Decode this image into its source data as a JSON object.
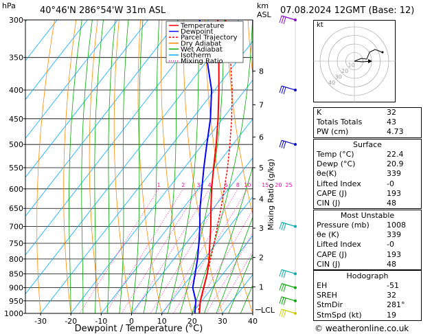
{
  "header": {
    "hpa_label": "hPa",
    "location": "40°46'N  286°54'W  31m  ASL",
    "km_label": "km",
    "asl_label": "ASL",
    "datetime": "07.08.2024  12GMT  (Base: 12)",
    "kt_label": "kt",
    "lcl_label": "LCL",
    "mixing_axis_label": "Mixing Ratio (g/kg)",
    "xlabel": "Dewpoint / Temperature (°C)",
    "copyright": "© weatheronline.co.uk"
  },
  "legend": [
    {
      "label": "Temperature",
      "color": "#ff0000"
    },
    {
      "label": "Dewpoint",
      "color": "#0000ff"
    },
    {
      "label": "Parcel Trajectory",
      "color": "#ff0000"
    },
    {
      "label": "Dry Adiabat",
      "color": "#ff8800"
    },
    {
      "label": "Wet Adiabat",
      "color": "#00aa00"
    },
    {
      "label": "Isotherm",
      "color": "#00aaff"
    },
    {
      "label": "Mixing Ratio",
      "color": "#ff00aa"
    }
  ],
  "chart_data": {
    "type": "line",
    "pressure_levels": [
      300,
      350,
      400,
      450,
      500,
      550,
      600,
      650,
      700,
      750,
      800,
      850,
      900,
      950,
      1000
    ],
    "temperature_ticks": [
      -30,
      -20,
      -10,
      0,
      10,
      20,
      30,
      40
    ],
    "xlim": [
      -35,
      40
    ],
    "ylim": [
      1000,
      300
    ],
    "km_ticks": [
      {
        "km": "1",
        "p": 897
      },
      {
        "km": "2",
        "p": 795
      },
      {
        "km": "3",
        "p": 705
      },
      {
        "km": "4",
        "p": 625
      },
      {
        "km": "5",
        "p": 550
      },
      {
        "km": "6",
        "p": 485
      },
      {
        "km": "7",
        "p": 425
      },
      {
        "km": "8",
        "p": 370
      }
    ],
    "mixing_ratio_labels": [
      "1",
      "2",
      "3",
      "4",
      "6",
      "8",
      "10",
      "15",
      "20",
      "25"
    ],
    "mixing_ratio_values": [
      1,
      2,
      3,
      4,
      6,
      8,
      10,
      15,
      20,
      25
    ],
    "lcl_pressure": 985,
    "series": [
      {
        "name": "Temperature",
        "color": "#ff0000",
        "p": [
          1000,
          950,
          900,
          850,
          800,
          750,
          700,
          650,
          600,
          550,
          500,
          450,
          400,
          350,
          300
        ],
        "t": [
          22.4,
          19.5,
          17.2,
          14.8,
          11.6,
          7.8,
          3.8,
          -0.8,
          -5.6,
          -10.4,
          -15.5,
          -21.5,
          -28.6,
          -37.0,
          -47.0
        ]
      },
      {
        "name": "Dewpoint",
        "color": "#0000ff",
        "p": [
          1000,
          950,
          900,
          850,
          800,
          750,
          700,
          650,
          600,
          550,
          500,
          450,
          400,
          350,
          300
        ],
        "t": [
          20.9,
          18.0,
          13.6,
          10.8,
          7.8,
          4.2,
          0.2,
          -4.4,
          -8.8,
          -13.6,
          -18.6,
          -24.0,
          -31.0,
          -41.0,
          -53.0
        ]
      },
      {
        "name": "Parcel Trajectory",
        "color": "#ff0000",
        "p": [
          1000,
          985,
          950,
          900,
          850,
          800,
          750,
          700,
          650,
          600,
          550,
          500,
          450,
          400,
          350,
          300
        ],
        "t": [
          22.4,
          21.2,
          19.6,
          17.3,
          14.8,
          12.1,
          9.2,
          6.0,
          2.5,
          -1.4,
          -5.8,
          -11.0,
          -17.0,
          -24.2,
          -33.2,
          -44.5
        ]
      }
    ],
    "wind_barbs": [
      {
        "p": 300,
        "color": "#8800cc"
      },
      {
        "p": 400,
        "color": "#0000cc"
      },
      {
        "p": 500,
        "color": "#0000cc"
      },
      {
        "p": 700,
        "color": "#00aaaa"
      },
      {
        "p": 850,
        "color": "#00aaaa"
      },
      {
        "p": 900,
        "color": "#00aa00"
      },
      {
        "p": 950,
        "color": "#00aa00"
      },
      {
        "p": 1000,
        "color": "#cccc00"
      }
    ],
    "hodograph": {
      "rings_kt": [
        10,
        20,
        30,
        40
      ],
      "ring_labels": [
        "10",
        "20",
        "30",
        "40"
      ]
    }
  },
  "indices": {
    "general": [
      {
        "label": "K",
        "value": "32"
      },
      {
        "label": "Totals Totals",
        "value": "43"
      },
      {
        "label": "PW (cm)",
        "value": "4.73"
      }
    ],
    "surface": {
      "title": "Surface",
      "rows": [
        {
          "label": "Temp (°C)",
          "value": "22.4"
        },
        {
          "label": "Dewp (°C)",
          "value": "20.9"
        },
        {
          "label": "θe(K)",
          "value": "339"
        },
        {
          "label": "Lifted Index",
          "value": "-0"
        },
        {
          "label": "CAPE (J)",
          "value": "193"
        },
        {
          "label": "CIN (J)",
          "value": "48"
        }
      ]
    },
    "most_unstable": {
      "title": "Most Unstable",
      "rows": [
        {
          "label": "Pressure (mb)",
          "value": "1008"
        },
        {
          "label": "θe (K)",
          "value": "339"
        },
        {
          "label": "Lifted Index",
          "value": "-0"
        },
        {
          "label": "CAPE (J)",
          "value": "193"
        },
        {
          "label": "CIN (J)",
          "value": "48"
        }
      ]
    },
    "hodograph": {
      "title": "Hodograph",
      "rows": [
        {
          "label": "EH",
          "value": "-51"
        },
        {
          "label": "SREH",
          "value": "32"
        },
        {
          "label": "StmDir",
          "value": "281°"
        },
        {
          "label": "StmSpd (kt)",
          "value": "19"
        }
      ]
    }
  }
}
